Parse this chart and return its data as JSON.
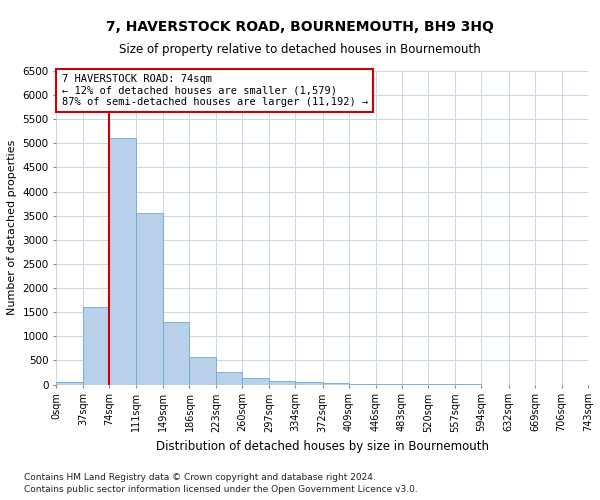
{
  "title": "7, HAVERSTOCK ROAD, BOURNEMOUTH, BH9 3HQ",
  "subtitle": "Size of property relative to detached houses in Bournemouth",
  "xlabel": "Distribution of detached houses by size in Bournemouth",
  "ylabel": "Number of detached properties",
  "footnote1": "Contains HM Land Registry data © Crown copyright and database right 2024.",
  "footnote2": "Contains public sector information licensed under the Open Government Licence v3.0.",
  "annotation_line1": "7 HAVERSTOCK ROAD: 74sqm",
  "annotation_line2": "← 12% of detached houses are smaller (1,579)",
  "annotation_line3": "87% of semi-detached houses are larger (11,192) →",
  "property_size": 74,
  "bin_edges": [
    0,
    37,
    74,
    111,
    149,
    186,
    223,
    260,
    297,
    334,
    372,
    409,
    446,
    483,
    520,
    557,
    594,
    632,
    669,
    706,
    743
  ],
  "bin_labels": [
    "0sqm",
    "37sqm",
    "74sqm",
    "111sqm",
    "149sqm",
    "186sqm",
    "223sqm",
    "260sqm",
    "297sqm",
    "334sqm",
    "372sqm",
    "409sqm",
    "446sqm",
    "483sqm",
    "520sqm",
    "557sqm",
    "594sqm",
    "632sqm",
    "669sqm",
    "706sqm",
    "743sqm"
  ],
  "values": [
    50,
    1600,
    5100,
    3550,
    1300,
    580,
    270,
    130,
    80,
    50,
    30,
    20,
    10,
    5,
    3,
    2,
    1,
    1,
    0,
    0
  ],
  "bar_color": "#b8d0ea",
  "bar_edge_color": "#6fa8d0",
  "vline_color": "#cc0000",
  "grid_color": "#c8d8ea",
  "annotation_box_edge_color": "#cc0000",
  "ylim": [
    0,
    6500
  ],
  "yticks": [
    0,
    500,
    1000,
    1500,
    2000,
    2500,
    3000,
    3500,
    4000,
    4500,
    5000,
    5500,
    6000,
    6500
  ]
}
